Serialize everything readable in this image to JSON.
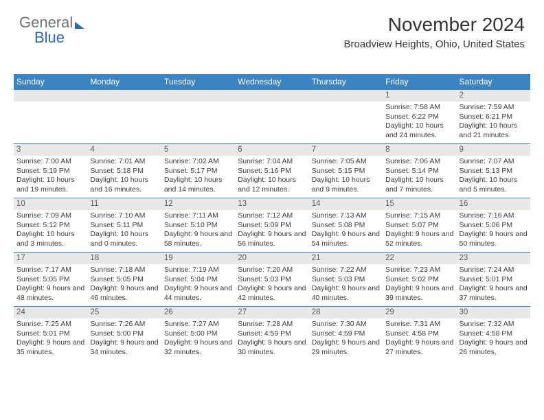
{
  "logo": {
    "text1": "General",
    "text2": "Blue"
  },
  "title": "November 2024",
  "location": "Broadview Heights, Ohio, United States",
  "colors": {
    "header_band": "#3b84c4",
    "daynum_bg": "#e8e8e8",
    "week_border": "#3b84c4",
    "text": "#3c3c3c",
    "logo_gray": "#6f7277",
    "logo_blue": "#2a6ab0"
  },
  "dow": [
    "Sunday",
    "Monday",
    "Tuesday",
    "Wednesday",
    "Thursday",
    "Friday",
    "Saturday"
  ],
  "weeks": [
    [
      null,
      null,
      null,
      null,
      null,
      {
        "n": "1",
        "sr": "7:58 AM",
        "ss": "6:22 PM",
        "dl": "10 hours and 24 minutes."
      },
      {
        "n": "2",
        "sr": "7:59 AM",
        "ss": "6:21 PM",
        "dl": "10 hours and 21 minutes."
      }
    ],
    [
      {
        "n": "3",
        "sr": "7:00 AM",
        "ss": "5:19 PM",
        "dl": "10 hours and 19 minutes."
      },
      {
        "n": "4",
        "sr": "7:01 AM",
        "ss": "5:18 PM",
        "dl": "10 hours and 16 minutes."
      },
      {
        "n": "5",
        "sr": "7:02 AM",
        "ss": "5:17 PM",
        "dl": "10 hours and 14 minutes."
      },
      {
        "n": "6",
        "sr": "7:04 AM",
        "ss": "5:16 PM",
        "dl": "10 hours and 12 minutes."
      },
      {
        "n": "7",
        "sr": "7:05 AM",
        "ss": "5:15 PM",
        "dl": "10 hours and 9 minutes."
      },
      {
        "n": "8",
        "sr": "7:06 AM",
        "ss": "5:14 PM",
        "dl": "10 hours and 7 minutes."
      },
      {
        "n": "9",
        "sr": "7:07 AM",
        "ss": "5:13 PM",
        "dl": "10 hours and 5 minutes."
      }
    ],
    [
      {
        "n": "10",
        "sr": "7:09 AM",
        "ss": "5:12 PM",
        "dl": "10 hours and 3 minutes."
      },
      {
        "n": "11",
        "sr": "7:10 AM",
        "ss": "5:11 PM",
        "dl": "10 hours and 0 minutes."
      },
      {
        "n": "12",
        "sr": "7:11 AM",
        "ss": "5:10 PM",
        "dl": "9 hours and 58 minutes."
      },
      {
        "n": "13",
        "sr": "7:12 AM",
        "ss": "5:09 PM",
        "dl": "9 hours and 56 minutes."
      },
      {
        "n": "14",
        "sr": "7:13 AM",
        "ss": "5:08 PM",
        "dl": "9 hours and 54 minutes."
      },
      {
        "n": "15",
        "sr": "7:15 AM",
        "ss": "5:07 PM",
        "dl": "9 hours and 52 minutes."
      },
      {
        "n": "16",
        "sr": "7:16 AM",
        "ss": "5:06 PM",
        "dl": "9 hours and 50 minutes."
      }
    ],
    [
      {
        "n": "17",
        "sr": "7:17 AM",
        "ss": "5:05 PM",
        "dl": "9 hours and 48 minutes."
      },
      {
        "n": "18",
        "sr": "7:18 AM",
        "ss": "5:05 PM",
        "dl": "9 hours and 46 minutes."
      },
      {
        "n": "19",
        "sr": "7:19 AM",
        "ss": "5:04 PM",
        "dl": "9 hours and 44 minutes."
      },
      {
        "n": "20",
        "sr": "7:20 AM",
        "ss": "5:03 PM",
        "dl": "9 hours and 42 minutes."
      },
      {
        "n": "21",
        "sr": "7:22 AM",
        "ss": "5:03 PM",
        "dl": "9 hours and 40 minutes."
      },
      {
        "n": "22",
        "sr": "7:23 AM",
        "ss": "5:02 PM",
        "dl": "9 hours and 39 minutes."
      },
      {
        "n": "23",
        "sr": "7:24 AM",
        "ss": "5:01 PM",
        "dl": "9 hours and 37 minutes."
      }
    ],
    [
      {
        "n": "24",
        "sr": "7:25 AM",
        "ss": "5:01 PM",
        "dl": "9 hours and 35 minutes."
      },
      {
        "n": "25",
        "sr": "7:26 AM",
        "ss": "5:00 PM",
        "dl": "9 hours and 34 minutes."
      },
      {
        "n": "26",
        "sr": "7:27 AM",
        "ss": "5:00 PM",
        "dl": "9 hours and 32 minutes."
      },
      {
        "n": "27",
        "sr": "7:28 AM",
        "ss": "4:59 PM",
        "dl": "9 hours and 30 minutes."
      },
      {
        "n": "28",
        "sr": "7:30 AM",
        "ss": "4:59 PM",
        "dl": "9 hours and 29 minutes."
      },
      {
        "n": "29",
        "sr": "7:31 AM",
        "ss": "4:58 PM",
        "dl": "9 hours and 27 minutes."
      },
      {
        "n": "30",
        "sr": "7:32 AM",
        "ss": "4:58 PM",
        "dl": "9 hours and 26 minutes."
      }
    ]
  ],
  "labels": {
    "sunrise": "Sunrise: ",
    "sunset": "Sunset: ",
    "daylight": "Daylight: "
  }
}
